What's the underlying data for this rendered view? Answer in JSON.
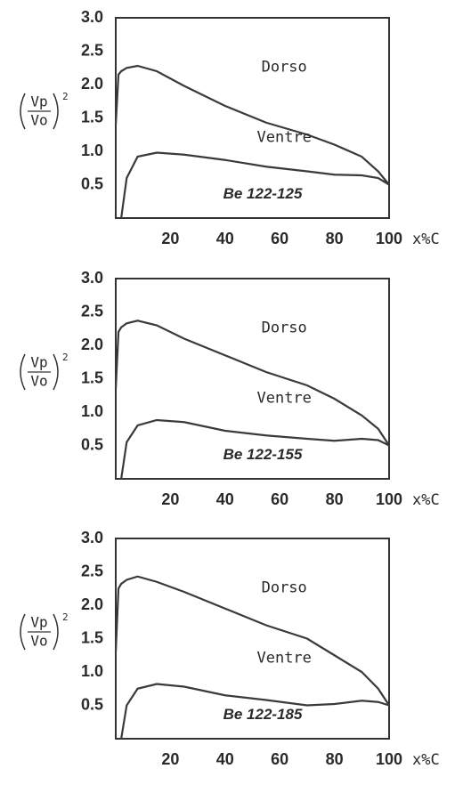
{
  "chart_data": [
    {
      "type": "line",
      "annotation": "Be 122-125",
      "x_label": "x%C",
      "y_label": {
        "numerator": "Vp",
        "denominator": "Vo",
        "exponent": "2"
      },
      "x": [
        0,
        1,
        2,
        4,
        8,
        15,
        25,
        40,
        55,
        70,
        80,
        90,
        96,
        100
      ],
      "series": [
        {
          "name": "Dorso",
          "color": "#3a3a3a",
          "values": [
            1.4,
            2.15,
            2.2,
            2.25,
            2.28,
            2.2,
            1.98,
            1.68,
            1.43,
            1.25,
            1.1,
            0.92,
            0.7,
            0.5
          ]
        },
        {
          "name": "Ventre",
          "color": "#3a3a3a",
          "values": [
            null,
            null,
            0,
            0.6,
            0.92,
            0.98,
            0.95,
            0.87,
            0.77,
            0.7,
            0.65,
            0.64,
            0.6,
            0.5
          ]
        }
      ],
      "xlim": [
        0,
        100
      ],
      "xticks": [
        20,
        40,
        60,
        80,
        100
      ],
      "ylim": [
        0,
        3
      ],
      "yticks": [
        0.5,
        {
          "value": 1,
          "label": "1.0"
        },
        1.5,
        {
          "value": 2,
          "label": "2.0"
        },
        2.5,
        {
          "value": 3,
          "label": "3.0"
        }
      ]
    },
    {
      "type": "line",
      "annotation": "Be 122-155",
      "x_label": "x%C",
      "y_label": {
        "numerator": "Vp",
        "denominator": "Vo",
        "exponent": "2"
      },
      "x": [
        0,
        1,
        2,
        4,
        8,
        15,
        25,
        40,
        55,
        70,
        80,
        90,
        96,
        100
      ],
      "series": [
        {
          "name": "Dorso",
          "color": "#3a3a3a",
          "values": [
            1.35,
            2.2,
            2.27,
            2.33,
            2.37,
            2.3,
            2.1,
            1.85,
            1.6,
            1.4,
            1.2,
            0.95,
            0.75,
            0.5
          ]
        },
        {
          "name": "Ventre",
          "color": "#3a3a3a",
          "values": [
            null,
            null,
            0,
            0.55,
            0.8,
            0.88,
            0.85,
            0.72,
            0.65,
            0.6,
            0.57,
            0.6,
            0.58,
            0.5
          ]
        }
      ],
      "xlim": [
        0,
        100
      ],
      "xticks": [
        20,
        40,
        60,
        80,
        100
      ],
      "ylim": [
        0,
        3
      ],
      "yticks": [
        0.5,
        {
          "value": 1,
          "label": "1.0"
        },
        1.5,
        {
          "value": 2,
          "label": "2.0"
        },
        2.5,
        {
          "value": 3,
          "label": "3.0"
        }
      ]
    },
    {
      "type": "line",
      "annotation": "Be 122-185",
      "x_label": "x%C",
      "y_label": {
        "numerator": "Vp",
        "denominator": "Vo",
        "exponent": "2"
      },
      "x": [
        0,
        1,
        2,
        4,
        8,
        15,
        25,
        40,
        55,
        70,
        80,
        90,
        96,
        100
      ],
      "series": [
        {
          "name": "Dorso",
          "color": "#3a3a3a",
          "values": [
            1.3,
            2.25,
            2.32,
            2.38,
            2.43,
            2.35,
            2.2,
            1.95,
            1.7,
            1.5,
            1.25,
            1.0,
            0.75,
            0.5
          ]
        },
        {
          "name": "Ventre",
          "color": "#3a3a3a",
          "values": [
            null,
            null,
            0,
            0.5,
            0.75,
            0.82,
            0.78,
            0.65,
            0.58,
            0.5,
            0.52,
            0.57,
            0.55,
            0.5
          ]
        }
      ],
      "xlim": [
        0,
        100
      ],
      "xticks": [
        20,
        40,
        60,
        80,
        100
      ],
      "ylim": [
        0,
        3
      ],
      "yticks": [
        0.5,
        {
          "value": 1,
          "label": "1.0"
        },
        1.5,
        {
          "value": 2,
          "label": "2.0"
        },
        2.5,
        {
          "value": 3,
          "label": "3.0"
        }
      ]
    }
  ]
}
